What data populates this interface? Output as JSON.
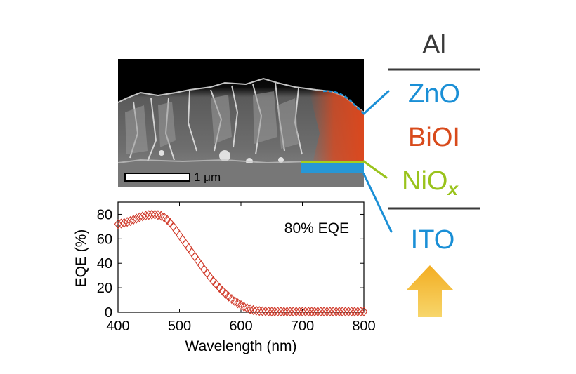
{
  "sem": {
    "scale_bar_label": "1 μm"
  },
  "stack": {
    "layers": [
      {
        "id": "al",
        "text": "Al",
        "sub": "",
        "color": "#3a3a3a"
      },
      {
        "id": "zno",
        "text": "ZnO",
        "sub": "",
        "color": "#1a8fd6"
      },
      {
        "id": "bioi",
        "text": "BiOI",
        "sub": "",
        "color": "#d84a1b"
      },
      {
        "id": "niox",
        "text": "NiO",
        "sub": "x",
        "color": "#9ac31c"
      },
      {
        "id": "ito",
        "text": "ITO",
        "sub": "",
        "color": "#1a8fd6"
      }
    ],
    "arrow_color": "#f2b632"
  },
  "chart_data": {
    "type": "scatter",
    "annotation": "80% EQE",
    "xlabel": "Wavelength (nm)",
    "ylabel": "EQE (%)",
    "xlim": [
      400,
      800
    ],
    "ylim": [
      0,
      90
    ],
    "xticks": [
      "400",
      "500",
      "600",
      "700",
      "800"
    ],
    "yticks": [
      "0",
      "20",
      "40",
      "60",
      "80"
    ],
    "marker": "diamond",
    "color": "#d03a2a",
    "grid": false,
    "x": [
      400,
      405,
      410,
      415,
      420,
      425,
      430,
      435,
      440,
      445,
      450,
      455,
      460,
      465,
      470,
      475,
      480,
      485,
      490,
      495,
      500,
      505,
      510,
      515,
      520,
      525,
      530,
      535,
      540,
      545,
      550,
      555,
      560,
      565,
      570,
      575,
      580,
      585,
      590,
      595,
      600,
      605,
      610,
      615,
      620,
      625,
      630,
      635,
      640,
      645,
      650,
      655,
      660,
      665,
      670,
      675,
      680,
      685,
      690,
      695,
      700,
      705,
      710,
      715,
      720,
      725,
      730,
      735,
      740,
      745,
      750,
      755,
      760,
      765,
      770,
      775,
      780,
      785,
      790,
      795,
      800
    ],
    "y": [
      72,
      72.5,
      73,
      73.8,
      74.5,
      75.5,
      76.5,
      77.5,
      78.3,
      79,
      79.5,
      79.8,
      79.8,
      79.5,
      78.8,
      77.5,
      75.5,
      73,
      70,
      66.5,
      63,
      59.5,
      56,
      52.5,
      49,
      45.5,
      42,
      38.5,
      35,
      31.8,
      28.5,
      25.5,
      22.8,
      20,
      17.5,
      15,
      12.8,
      10.8,
      9,
      7.3,
      5.8,
      4.5,
      3.4,
      2.5,
      1.8,
      1.3,
      1,
      0.8,
      0.7,
      0.6,
      0.5,
      0.5,
      0.5,
      0.5,
      0.5,
      0.5,
      0.5,
      0.5,
      0.5,
      0.5,
      0.5,
      0.5,
      0.5,
      0.5,
      0.5,
      0.5,
      0.5,
      0.5,
      0.5,
      0.5,
      0.5,
      0.5,
      0.5,
      0.5,
      0.5,
      0.5,
      0.5,
      0.5,
      0.5,
      0.5,
      0.5
    ]
  }
}
